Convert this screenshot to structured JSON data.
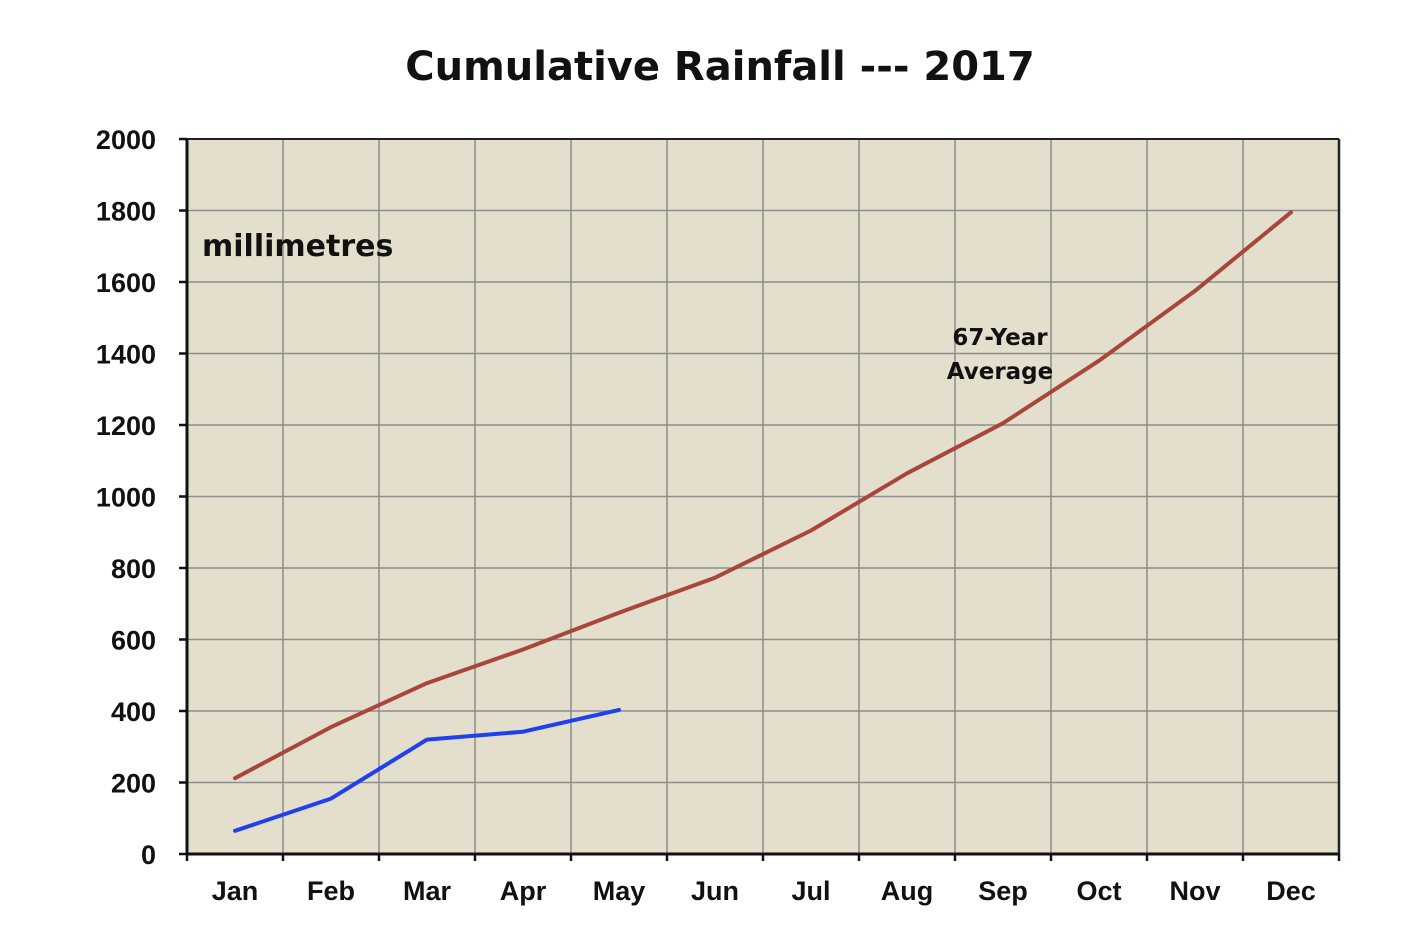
{
  "chart_data": {
    "type": "line",
    "title": "Cumulative Rainfall --- 2017",
    "unit_label": "millimetres",
    "xlabel": "",
    "ylabel": "",
    "categories": [
      "Jan",
      "Feb",
      "Mar",
      "Apr",
      "May",
      "Jun",
      "Jul",
      "Aug",
      "Sep",
      "Oct",
      "Nov",
      "Dec"
    ],
    "ylim": [
      0,
      2000
    ],
    "yticks": [
      "0",
      "200",
      "400",
      "600",
      "800",
      "1000",
      "1200",
      "1400",
      "1600",
      "1800",
      "2000"
    ],
    "grid": true,
    "legend": "none",
    "plot_background": "#e3dfcc",
    "annotations": [
      {
        "line1": "67-Year",
        "line2": "Average"
      }
    ],
    "series": [
      {
        "color": "#a8463c",
        "values": [
          212,
          355,
          478,
          572,
          675,
          773,
          905,
          1065,
          1205,
          1380,
          1575,
          1795
        ]
      },
      {
        "color": "#1f3ff0",
        "values": [
          65,
          155,
          320,
          342,
          403,
          null,
          null,
          null,
          null,
          null,
          null,
          null
        ]
      }
    ]
  }
}
